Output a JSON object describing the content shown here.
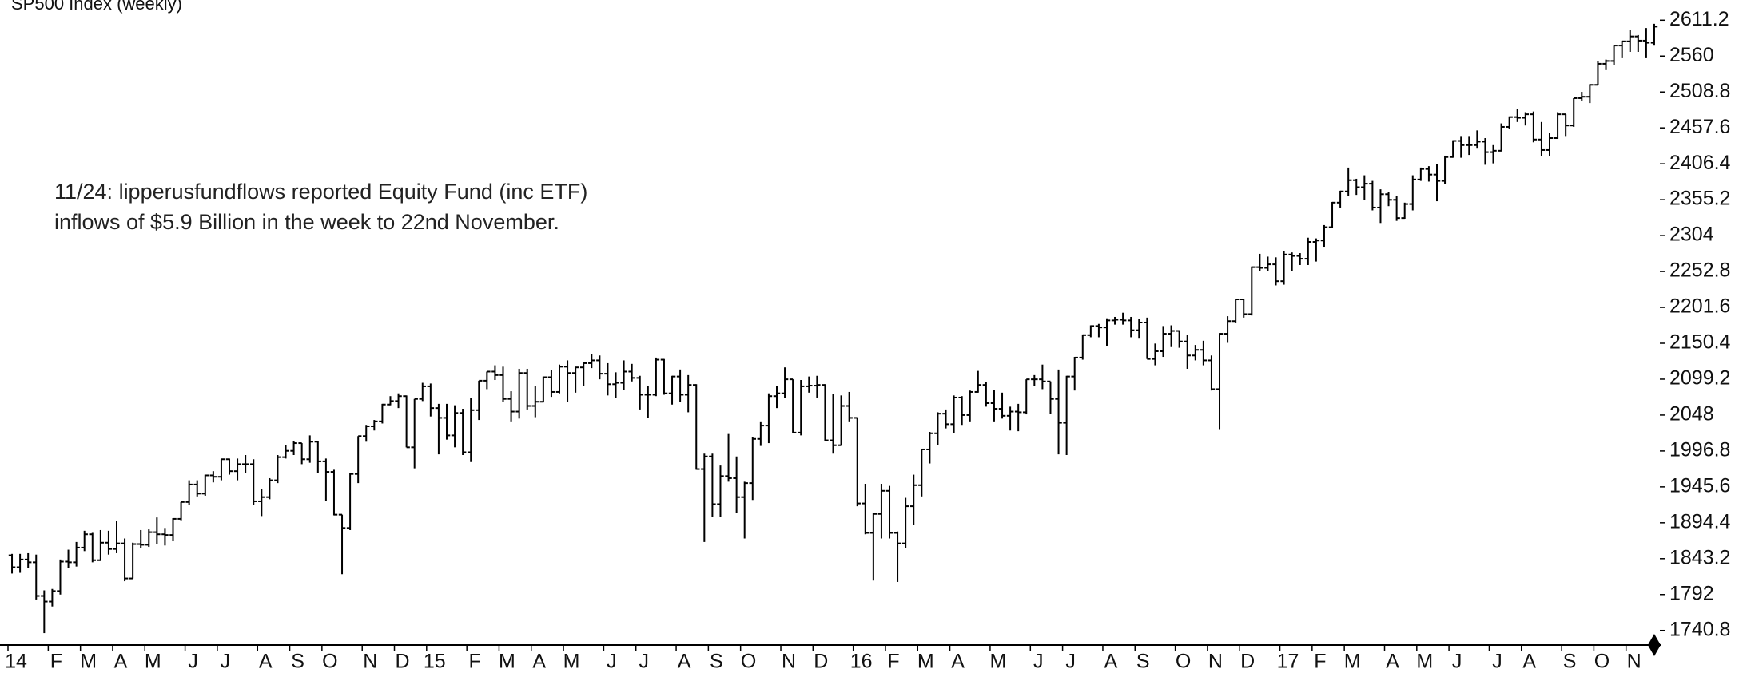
{
  "chart_data": {
    "type": "ohlc",
    "title": "SP500 Index (weekly)",
    "annotation": [
      "11/24: lipperusfundflows reported Equity Fund (inc ETF)",
      "inflows of $5.9 Billion in the week to 22nd November."
    ],
    "color": "#000000",
    "ylim": [
      1720,
      2640
    ],
    "yticks": [
      1740.8,
      1792,
      1843.2,
      1894.4,
      1945.6,
      1996.8,
      2048,
      2099.2,
      2150.4,
      2201.6,
      2252.8,
      2304,
      2355.2,
      2406.4,
      2457.6,
      2508.8,
      2560,
      2611.2
    ],
    "categories": [
      "14",
      null,
      null,
      null,
      null,
      "F",
      null,
      null,
      null,
      "M",
      null,
      null,
      null,
      "A",
      null,
      null,
      null,
      "M",
      null,
      null,
      null,
      null,
      "J",
      null,
      null,
      null,
      "J",
      null,
      null,
      null,
      null,
      "A",
      null,
      null,
      null,
      "S",
      null,
      null,
      null,
      "O",
      null,
      null,
      null,
      null,
      "N",
      null,
      null,
      null,
      "D",
      null,
      null,
      null,
      "15",
      null,
      null,
      null,
      null,
      "F",
      null,
      null,
      null,
      "M",
      null,
      null,
      null,
      "A",
      null,
      null,
      null,
      "M",
      null,
      null,
      null,
      null,
      "J",
      null,
      null,
      null,
      "J",
      null,
      null,
      null,
      null,
      "A",
      null,
      null,
      null,
      "S",
      null,
      null,
      null,
      "O",
      null,
      null,
      null,
      null,
      "N",
      null,
      null,
      null,
      "D",
      null,
      null,
      null,
      null,
      "16",
      null,
      null,
      null,
      "F",
      null,
      null,
      null,
      "M",
      null,
      null,
      null,
      "A",
      null,
      null,
      null,
      null,
      "M",
      null,
      null,
      null,
      null,
      "J",
      null,
      null,
      null,
      "J",
      null,
      null,
      null,
      null,
      "A",
      null,
      null,
      null,
      "S",
      null,
      null,
      null,
      null,
      "O",
      null,
      null,
      null,
      "N",
      null,
      null,
      null,
      "D",
      null,
      null,
      null,
      null,
      "17",
      null,
      null,
      null,
      "F",
      null,
      null,
      null,
      "M",
      null,
      null,
      null,
      null,
      "A",
      null,
      null,
      null,
      "M",
      null,
      null,
      null,
      "J",
      null,
      null,
      null,
      null,
      "J",
      null,
      null,
      null,
      "A",
      null,
      null,
      null,
      null,
      "S",
      null,
      null,
      null,
      "O",
      null,
      null,
      null,
      "N",
      null,
      null,
      null
    ],
    "open": [
      1848,
      1831,
      1842,
      1838,
      1790,
      1782,
      1797,
      1839,
      1838,
      1859,
      1878,
      1841,
      1866,
      1857,
      1865,
      1815,
      1864,
      1863,
      1881,
      1878,
      1877,
      1900,
      1924,
      1949,
      1936,
      1962,
      1960,
      1985,
      1968,
      1978,
      1978,
      1925,
      1931,
      1955,
      1988,
      1997,
      2008,
      1985,
      2010,
      1982,
      1967,
      1906,
      1887,
      1964,
      2018,
      2032,
      2039,
      2063,
      2068,
      2075,
      2002,
      2071,
      2089,
      2058,
      2044,
      2019,
      2051,
      1995,
      2055,
      2097,
      2110,
      2105,
      2071,
      2053,
      2108,
      2061,
      2067,
      2102,
      2081,
      2117,
      2108,
      2116,
      2122,
      2126,
      2107,
      2092,
      2094,
      2110,
      2101,
      2077,
      2077,
      2127,
      2079,
      2103,
      2077,
      2091,
      1971,
      1989,
      1921,
      1961,
      1958,
      1931,
      1951,
      2014,
      2033,
      2075,
      2079,
      2099,
      2023,
      2089,
      2090,
      2091,
      2012,
      2005,
      2061,
      2044,
      1922,
      1880,
      1907,
      1940,
      1880,
      1865,
      1918,
      1948,
      1999,
      2022,
      2050,
      2035,
      2073,
      2048,
      2081,
      2091,
      2065,
      2057,
      2047,
      2053,
      2052,
      2099,
      2099,
      2096,
      2071,
      2037,
      2103,
      2130,
      2162,
      2175,
      2173,
      2183,
      2184,
      2183,
      2169,
      2180,
      2128,
      2139,
      2164,
      2168,
      2153,
      2133,
      2141,
      2126,
      2085,
      2164,
      2182,
      2213,
      2192,
      2259,
      2258,
      2263,
      2239,
      2277,
      2275,
      2271,
      2295,
      2297,
      2316,
      2351,
      2367,
      2383,
      2373,
      2378,
      2344,
      2363,
      2355,
      2329,
      2349,
      2384,
      2399,
      2391,
      2382,
      2416,
      2439,
      2433,
      2433,
      2438,
      2423,
      2425,
      2459,
      2473,
      2472,
      2477,
      2441,
      2426,
      2443,
      2477,
      2461,
      2500,
      2502,
      2519,
      2549,
      2553,
      2575,
      2581,
      2588,
      2582,
      2579
    ],
    "high": [
      1850,
      1850,
      1851,
      1849,
      1798,
      1800,
      1842,
      1856,
      1867,
      1883,
      1880,
      1884,
      1883,
      1897,
      1872,
      1866,
      1884,
      1885,
      1902,
      1887,
      1901,
      1924,
      1955,
      1955,
      1963,
      1968,
      1985,
      1986,
      1986,
      1991,
      1985,
      1942,
      1958,
      1991,
      2005,
      2011,
      2008,
      2019,
      2011,
      1986,
      1970,
      1906,
      1966,
      2018,
      2034,
      2041,
      2064,
      2075,
      2079,
      2076,
      2071,
      2094,
      2093,
      2064,
      2064,
      2062,
      2057,
      2072,
      2097,
      2110,
      2119,
      2117,
      2082,
      2114,
      2114,
      2089,
      2103,
      2112,
      2120,
      2126,
      2117,
      2123,
      2135,
      2133,
      2122,
      2109,
      2126,
      2121,
      2104,
      2089,
      2130,
      2128,
      2104,
      2113,
      2105,
      2092,
      1993,
      1993,
      1976,
      2021,
      1989,
      1953,
      2017,
      2039,
      2079,
      2090,
      2116,
      2099,
      2098,
      2103,
      2104,
      2092,
      2078,
      2076,
      2081,
      2044,
      1950,
      1908,
      1950,
      1947,
      1882,
      1930,
      1963,
      2000,
      2024,
      2052,
      2056,
      2076,
      2075,
      2083,
      2111,
      2095,
      2084,
      2080,
      2060,
      2064,
      2099,
      2105,
      2120,
      2096,
      2113,
      2104,
      2131,
      2163,
      2176,
      2178,
      2186,
      2188,
      2194,
      2188,
      2185,
      2187,
      2150,
      2175,
      2176,
      2169,
      2162,
      2148,
      2154,
      2133,
      2165,
      2189,
      2214,
      2214,
      2260,
      2278,
      2274,
      2273,
      2282,
      2280,
      2279,
      2301,
      2300,
      2319,
      2352,
      2368,
      2401,
      2385,
      2390,
      2382,
      2370,
      2366,
      2360,
      2351,
      2390,
      2401,
      2403,
      2406,
      2418,
      2440,
      2446,
      2446,
      2454,
      2443,
      2433,
      2464,
      2474,
      2484,
      2480,
      2481,
      2466,
      2451,
      2480,
      2477,
      2500,
      2509,
      2520,
      2553,
      2555,
      2576,
      2582,
      2597,
      2590,
      2600,
      2606
    ],
    "low": [
      1822,
      1823,
      1830,
      1785,
      1737,
      1775,
      1792,
      1830,
      1832,
      1854,
      1838,
      1840,
      1849,
      1851,
      1811,
      1815,
      1858,
      1860,
      1864,
      1862,
      1868,
      1898,
      1920,
      1932,
      1933,
      1952,
      1955,
      1963,
      1955,
      1965,
      1920,
      1904,
      1928,
      1951,
      1986,
      1991,
      1978,
      1980,
      1965,
      1926,
      1905,
      1821,
      1884,
      1951,
      2010,
      2026,
      2036,
      2062,
      2058,
      2002,
      1972,
      2068,
      2046,
      1992,
      2013,
      2002,
      1991,
      1981,
      2041,
      2085,
      2098,
      2067,
      2039,
      2043,
      2056,
      2045,
      2066,
      2074,
      2079,
      2067,
      2080,
      2090,
      2115,
      2099,
      2076,
      2072,
      2084,
      2096,
      2056,
      2044,
      2075,
      2077,
      2063,
      2067,
      2052,
      1970,
      1867,
      1903,
      1903,
      1953,
      1908,
      1872,
      1927,
      2004,
      2008,
      2058,
      2072,
      2022,
      2019,
      2080,
      2073,
      2011,
      1993,
      2005,
      2039,
      1918,
      1878,
      1812,
      1872,
      1872,
      1810,
      1858,
      1891,
      1932,
      1979,
      2005,
      2029,
      2022,
      2034,
      2039,
      2080,
      2060,
      2039,
      2043,
      2026,
      2025,
      2049,
      2089,
      2085,
      2050,
      1992,
      1991,
      2083,
      2127,
      2159,
      2159,
      2147,
      2177,
      2177,
      2159,
      2157,
      2128,
      2119,
      2131,
      2145,
      2144,
      2114,
      2126,
      2119,
      2083,
      2028,
      2151,
      2179,
      2187,
      2190,
      2253,
      2253,
      2233,
      2234,
      2254,
      2262,
      2262,
      2267,
      2287,
      2315,
      2344,
      2361,
      2362,
      2355,
      2340,
      2322,
      2346,
      2325,
      2328,
      2340,
      2382,
      2381,
      2353,
      2378,
      2415,
      2415,
      2419,
      2428,
      2405,
      2407,
      2424,
      2456,
      2466,
      2461,
      2437,
      2417,
      2418,
      2442,
      2446,
      2459,
      2496,
      2493,
      2519,
      2540,
      2547,
      2557,
      2566,
      2566,
      2557,
      2576
    ],
    "close": [
      1831,
      1842,
      1838,
      1790,
      1782,
      1797,
      1839,
      1838,
      1859,
      1878,
      1841,
      1866,
      1857,
      1865,
      1815,
      1864,
      1863,
      1881,
      1878,
      1877,
      1900,
      1924,
      1949,
      1936,
      1962,
      1960,
      1985,
      1968,
      1978,
      1978,
      1925,
      1931,
      1955,
      1988,
      1997,
      2008,
      1985,
      2010,
      1982,
      1967,
      1906,
      1887,
      1964,
      2018,
      2032,
      2039,
      2063,
      2068,
      2075,
      2002,
      2071,
      2089,
      2058,
      2044,
      2019,
      2051,
      1995,
      2055,
      2097,
      2110,
      2105,
      2071,
      2053,
      2108,
      2061,
      2067,
      2102,
      2081,
      2117,
      2108,
      2116,
      2122,
      2126,
      2107,
      2092,
      2094,
      2110,
      2101,
      2077,
      2077,
      2127,
      2079,
      2103,
      2077,
      2091,
      1971,
      1989,
      1921,
      1961,
      1958,
      1931,
      1951,
      2014,
      2033,
      2075,
      2079,
      2099,
      2023,
      2089,
      2090,
      2091,
      2012,
      2005,
      2061,
      2044,
      1922,
      1880,
      1907,
      1940,
      1880,
      1865,
      1918,
      1948,
      1999,
      2022,
      2050,
      2035,
      2073,
      2048,
      2081,
      2091,
      2065,
      2057,
      2047,
      2053,
      2052,
      2099,
      2099,
      2096,
      2071,
      2037,
      2103,
      2130,
      2162,
      2175,
      2173,
      2183,
      2184,
      2183,
      2169,
      2180,
      2128,
      2139,
      2164,
      2168,
      2153,
      2133,
      2141,
      2126,
      2085,
      2164,
      2182,
      2213,
      2192,
      2259,
      2258,
      2263,
      2239,
      2277,
      2275,
      2271,
      2295,
      2297,
      2316,
      2351,
      2367,
      2383,
      2373,
      2378,
      2344,
      2363,
      2355,
      2329,
      2349,
      2384,
      2399,
      2391,
      2382,
      2416,
      2439,
      2433,
      2433,
      2438,
      2423,
      2425,
      2459,
      2473,
      2472,
      2477,
      2441,
      2426,
      2443,
      2477,
      2461,
      2500,
      2502,
      2519,
      2549,
      2553,
      2575,
      2581,
      2588,
      2582,
      2579,
      2602
    ]
  }
}
